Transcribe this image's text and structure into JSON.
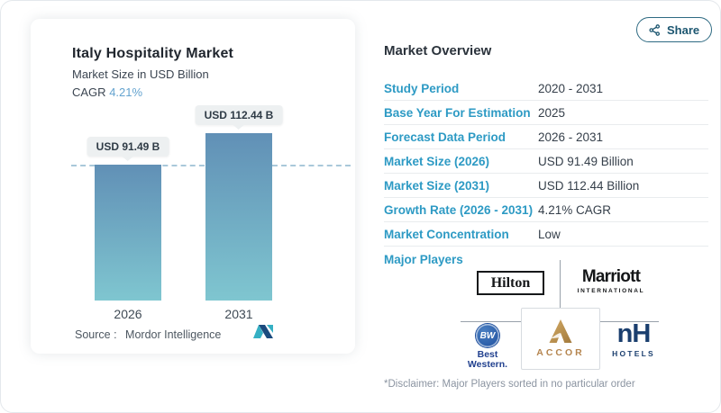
{
  "share": {
    "label": "Share"
  },
  "chart_card": {
    "title": "Italy Hospitality Market",
    "subtitle": "Market Size in USD Billion",
    "cagr_label": "CAGR",
    "cagr_value": "4.21%",
    "source_label": "Source :",
    "source_value": "Mordor Intelligence"
  },
  "chart_data": {
    "type": "bar",
    "categories": [
      "2026",
      "2031"
    ],
    "values": [
      91.49,
      112.44
    ],
    "value_labels": [
      "USD 91.49 B",
      "USD 112.44 B"
    ],
    "title": "Italy Hospitality Market",
    "ylabel": "Market Size in USD Billion",
    "cagr": "4.21%",
    "baseline_dashed_at": 91.49,
    "bar_gradient": [
      "#6190b6",
      "#7fc6d0"
    ],
    "grid": false,
    "legend": "none"
  },
  "overview": {
    "heading": "Market Overview",
    "rows": [
      {
        "label": "Study Period",
        "value": "2020 - 2031"
      },
      {
        "label": "Base Year For Estimation",
        "value": "2025"
      },
      {
        "label": "Forecast Data Period",
        "value": "2026 - 2031"
      },
      {
        "label": "Market Size (2026)",
        "value": "USD 91.49 Billion"
      },
      {
        "label": "Market Size (2031)",
        "value": "USD 112.44 Billion"
      },
      {
        "label": "Growth Rate (2026 - 2031)",
        "value": "4.21% CAGR"
      },
      {
        "label": "Market Concentration",
        "value": "Low"
      }
    ],
    "major_players_label": "Major Players",
    "disclaimer": "*Disclaimer: Major Players sorted in no particular order"
  },
  "logos": {
    "hilton": "Hilton",
    "marriott_line1": "Marriott",
    "marriott_line2": "INTERNATIONAL",
    "bw_circle": "BW",
    "bw_line1": "Best",
    "bw_line2": "Western.",
    "accor": "ACCOR",
    "nh_mark": "nH",
    "nh_sub": "HOTELS"
  },
  "colors": {
    "label_blue": "#2d9ac4",
    "cagr_blue": "#64a3cf",
    "bar_top": "#6190b6",
    "bar_bottom": "#7fc6d0",
    "share_teal": "#1c5670",
    "nh_navy": "#1a3e6e",
    "bw_blue": "#22418f",
    "accor_gold": "#b5854f"
  }
}
